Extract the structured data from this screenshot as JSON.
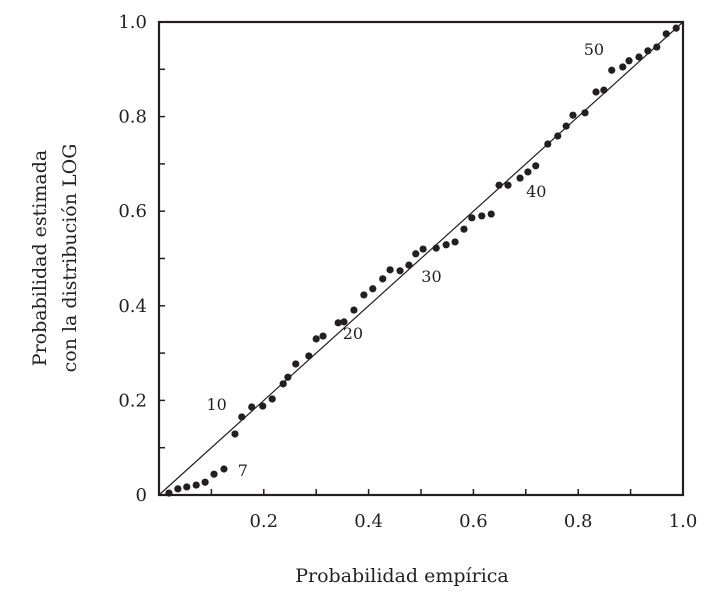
{
  "chart_data": {
    "type": "scatter",
    "title": "",
    "xlabel": "Probabilidad empírica",
    "ylabel_lines": [
      "Probabilidad estimada",
      "con la distribución LOG"
    ],
    "xlim": [
      0,
      1
    ],
    "ylim": [
      0,
      1
    ],
    "xticks": [
      "0.2",
      "0.4",
      "0.6",
      "0.8",
      "1.0"
    ],
    "xtick_values": [
      0.2,
      0.4,
      0.6,
      0.8,
      1.0
    ],
    "yticks": [
      "0",
      "0.2",
      "0.4",
      "0.6",
      "0.8",
      "1.0"
    ],
    "ytick_values": [
      0,
      0.2,
      0.4,
      0.6,
      0.8,
      1.0
    ],
    "grid": false,
    "reference_line": {
      "from": [
        0,
        0
      ],
      "to": [
        1,
        1
      ]
    },
    "points": [
      [
        0.019,
        0.004
      ],
      [
        0.036,
        0.013
      ],
      [
        0.053,
        0.017
      ],
      [
        0.071,
        0.021
      ],
      [
        0.088,
        0.027
      ],
      [
        0.105,
        0.044
      ],
      [
        0.124,
        0.055
      ],
      [
        0.145,
        0.129
      ],
      [
        0.158,
        0.165
      ],
      [
        0.177,
        0.186
      ],
      [
        0.198,
        0.188
      ],
      [
        0.216,
        0.203
      ],
      [
        0.237,
        0.235
      ],
      [
        0.246,
        0.249
      ],
      [
        0.261,
        0.277
      ],
      [
        0.286,
        0.294
      ],
      [
        0.3,
        0.33
      ],
      [
        0.313,
        0.336
      ],
      [
        0.342,
        0.364
      ],
      [
        0.353,
        0.366
      ],
      [
        0.372,
        0.391
      ],
      [
        0.391,
        0.423
      ],
      [
        0.408,
        0.436
      ],
      [
        0.427,
        0.457
      ],
      [
        0.441,
        0.476
      ],
      [
        0.46,
        0.474
      ],
      [
        0.477,
        0.486
      ],
      [
        0.49,
        0.51
      ],
      [
        0.504,
        0.52
      ],
      [
        0.529,
        0.522
      ],
      [
        0.548,
        0.529
      ],
      [
        0.565,
        0.535
      ],
      [
        0.582,
        0.562
      ],
      [
        0.597,
        0.586
      ],
      [
        0.616,
        0.59
      ],
      [
        0.634,
        0.594
      ],
      [
        0.649,
        0.655
      ],
      [
        0.666,
        0.655
      ],
      [
        0.689,
        0.67
      ],
      [
        0.704,
        0.683
      ],
      [
        0.719,
        0.696
      ],
      [
        0.742,
        0.742
      ],
      [
        0.761,
        0.759
      ],
      [
        0.777,
        0.78
      ],
      [
        0.79,
        0.803
      ],
      [
        0.813,
        0.808
      ],
      [
        0.834,
        0.852
      ],
      [
        0.849,
        0.856
      ],
      [
        0.864,
        0.898
      ],
      [
        0.885,
        0.905
      ],
      [
        0.897,
        0.918
      ],
      [
        0.916,
        0.926
      ],
      [
        0.933,
        0.939
      ],
      [
        0.95,
        0.947
      ],
      [
        0.968,
        0.975
      ],
      [
        0.987,
        0.987
      ]
    ],
    "annotations": [
      {
        "text": "7",
        "x": 0.16,
        "y": 0.04
      },
      {
        "text": "10",
        "x": 0.11,
        "y": 0.18
      },
      {
        "text": "20",
        "x": 0.37,
        "y": 0.33
      },
      {
        "text": "30",
        "x": 0.52,
        "y": 0.45
      },
      {
        "text": "40",
        "x": 0.72,
        "y": 0.63
      },
      {
        "text": "50",
        "x": 0.83,
        "y": 0.93
      }
    ]
  }
}
